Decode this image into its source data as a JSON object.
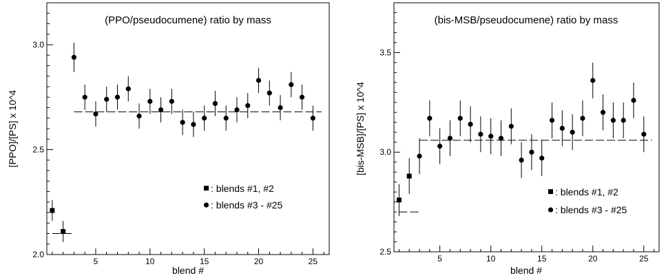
{
  "chart_data": [
    {
      "type": "scatter",
      "title": "(PPO/pseudocumene) ratio by mass",
      "xlabel": "blend #",
      "ylabel": "[PPO]/[PS] x 10^4",
      "xlim": [
        0.5,
        26.5
      ],
      "ylim": [
        2.0,
        3.2
      ],
      "xticks": [
        5,
        10,
        15,
        20,
        25
      ],
      "yticks": [
        2.0,
        2.5,
        3.0
      ],
      "ytick_labels": [
        "2.0",
        "2.5",
        "3.0"
      ],
      "grid": false,
      "legend_position": "bottom-right",
      "series": [
        {
          "name": ": blends #1, #2",
          "marker": "square",
          "points": [
            {
              "x": 1,
              "y": 2.21,
              "err": 0.05
            },
            {
              "x": 2,
              "y": 2.11,
              "err": 0.05
            }
          ],
          "mean_line": {
            "value": 2.1,
            "x_from": 1,
            "x_to": 3
          }
        },
        {
          "name": ": blends #3 - #25",
          "marker": "circle",
          "points": [
            {
              "x": 3,
              "y": 2.94,
              "err": 0.07
            },
            {
              "x": 4,
              "y": 2.75,
              "err": 0.06
            },
            {
              "x": 5,
              "y": 2.67,
              "err": 0.06
            },
            {
              "x": 6,
              "y": 2.74,
              "err": 0.06
            },
            {
              "x": 7,
              "y": 2.75,
              "err": 0.06
            },
            {
              "x": 8,
              "y": 2.79,
              "err": 0.06
            },
            {
              "x": 9,
              "y": 2.66,
              "err": 0.06
            },
            {
              "x": 10,
              "y": 2.73,
              "err": 0.06
            },
            {
              "x": 11,
              "y": 2.69,
              "err": 0.06
            },
            {
              "x": 12,
              "y": 2.73,
              "err": 0.06
            },
            {
              "x": 13,
              "y": 2.63,
              "err": 0.06
            },
            {
              "x": 14,
              "y": 2.62,
              "err": 0.06
            },
            {
              "x": 15,
              "y": 2.65,
              "err": 0.06
            },
            {
              "x": 16,
              "y": 2.72,
              "err": 0.06
            },
            {
              "x": 17,
              "y": 2.65,
              "err": 0.06
            },
            {
              "x": 18,
              "y": 2.69,
              "err": 0.06
            },
            {
              "x": 19,
              "y": 2.71,
              "err": 0.06
            },
            {
              "x": 20,
              "y": 2.83,
              "err": 0.06
            },
            {
              "x": 21,
              "y": 2.77,
              "err": 0.06
            },
            {
              "x": 22,
              "y": 2.7,
              "err": 0.06
            },
            {
              "x": 23,
              "y": 2.81,
              "err": 0.06
            },
            {
              "x": 24,
              "y": 2.75,
              "err": 0.06
            },
            {
              "x": 25,
              "y": 2.65,
              "err": 0.06
            }
          ],
          "mean_line": {
            "value": 2.68,
            "x_from": 3,
            "x_to": 25.8
          }
        }
      ]
    },
    {
      "type": "scatter",
      "title": "(bis-MSB/pseudocumene) ratio by mass",
      "xlabel": "blend #",
      "ylabel": "[bis-MSB]/[PS] x 10^4",
      "xlim": [
        0.5,
        26.5
      ],
      "ylim": [
        2.5,
        3.75
      ],
      "xticks": [
        5,
        10,
        15,
        20,
        25
      ],
      "yticks": [
        2.5,
        3.0,
        3.5
      ],
      "ytick_labels": [
        "2.5",
        "3.0",
        "3.5"
      ],
      "grid": false,
      "legend_position": "bottom-right",
      "series": [
        {
          "name": ": blends #1, #2",
          "marker": "square",
          "points": [
            {
              "x": 1,
              "y": 2.76,
              "err": 0.08
            },
            {
              "x": 2,
              "y": 2.88,
              "err": 0.09
            }
          ],
          "mean_line": {
            "value": 2.7,
            "x_from": 1,
            "x_to": 3
          }
        },
        {
          "name": ": blends #3 - #25",
          "marker": "circle",
          "points": [
            {
              "x": 3,
              "y": 2.98,
              "err": 0.09
            },
            {
              "x": 4,
              "y": 3.17,
              "err": 0.09
            },
            {
              "x": 5,
              "y": 3.03,
              "err": 0.09
            },
            {
              "x": 6,
              "y": 3.07,
              "err": 0.09
            },
            {
              "x": 7,
              "y": 3.17,
              "err": 0.09
            },
            {
              "x": 8,
              "y": 3.14,
              "err": 0.09
            },
            {
              "x": 9,
              "y": 3.09,
              "err": 0.09
            },
            {
              "x": 10,
              "y": 3.08,
              "err": 0.09
            },
            {
              "x": 11,
              "y": 3.07,
              "err": 0.09
            },
            {
              "x": 12,
              "y": 3.13,
              "err": 0.09
            },
            {
              "x": 13,
              "y": 2.96,
              "err": 0.09
            },
            {
              "x": 14,
              "y": 3.0,
              "err": 0.09
            },
            {
              "x": 15,
              "y": 2.97,
              "err": 0.09
            },
            {
              "x": 16,
              "y": 3.16,
              "err": 0.09
            },
            {
              "x": 17,
              "y": 3.12,
              "err": 0.09
            },
            {
              "x": 18,
              "y": 3.1,
              "err": 0.09
            },
            {
              "x": 19,
              "y": 3.17,
              "err": 0.09
            },
            {
              "x": 20,
              "y": 3.36,
              "err": 0.09
            },
            {
              "x": 21,
              "y": 3.2,
              "err": 0.09
            },
            {
              "x": 22,
              "y": 3.16,
              "err": 0.09
            },
            {
              "x": 23,
              "y": 3.16,
              "err": 0.09
            },
            {
              "x": 24,
              "y": 3.26,
              "err": 0.09
            },
            {
              "x": 25,
              "y": 3.09,
              "err": 0.09
            }
          ],
          "mean_line": {
            "value": 3.06,
            "x_from": 3,
            "x_to": 25.8
          }
        }
      ]
    }
  ]
}
